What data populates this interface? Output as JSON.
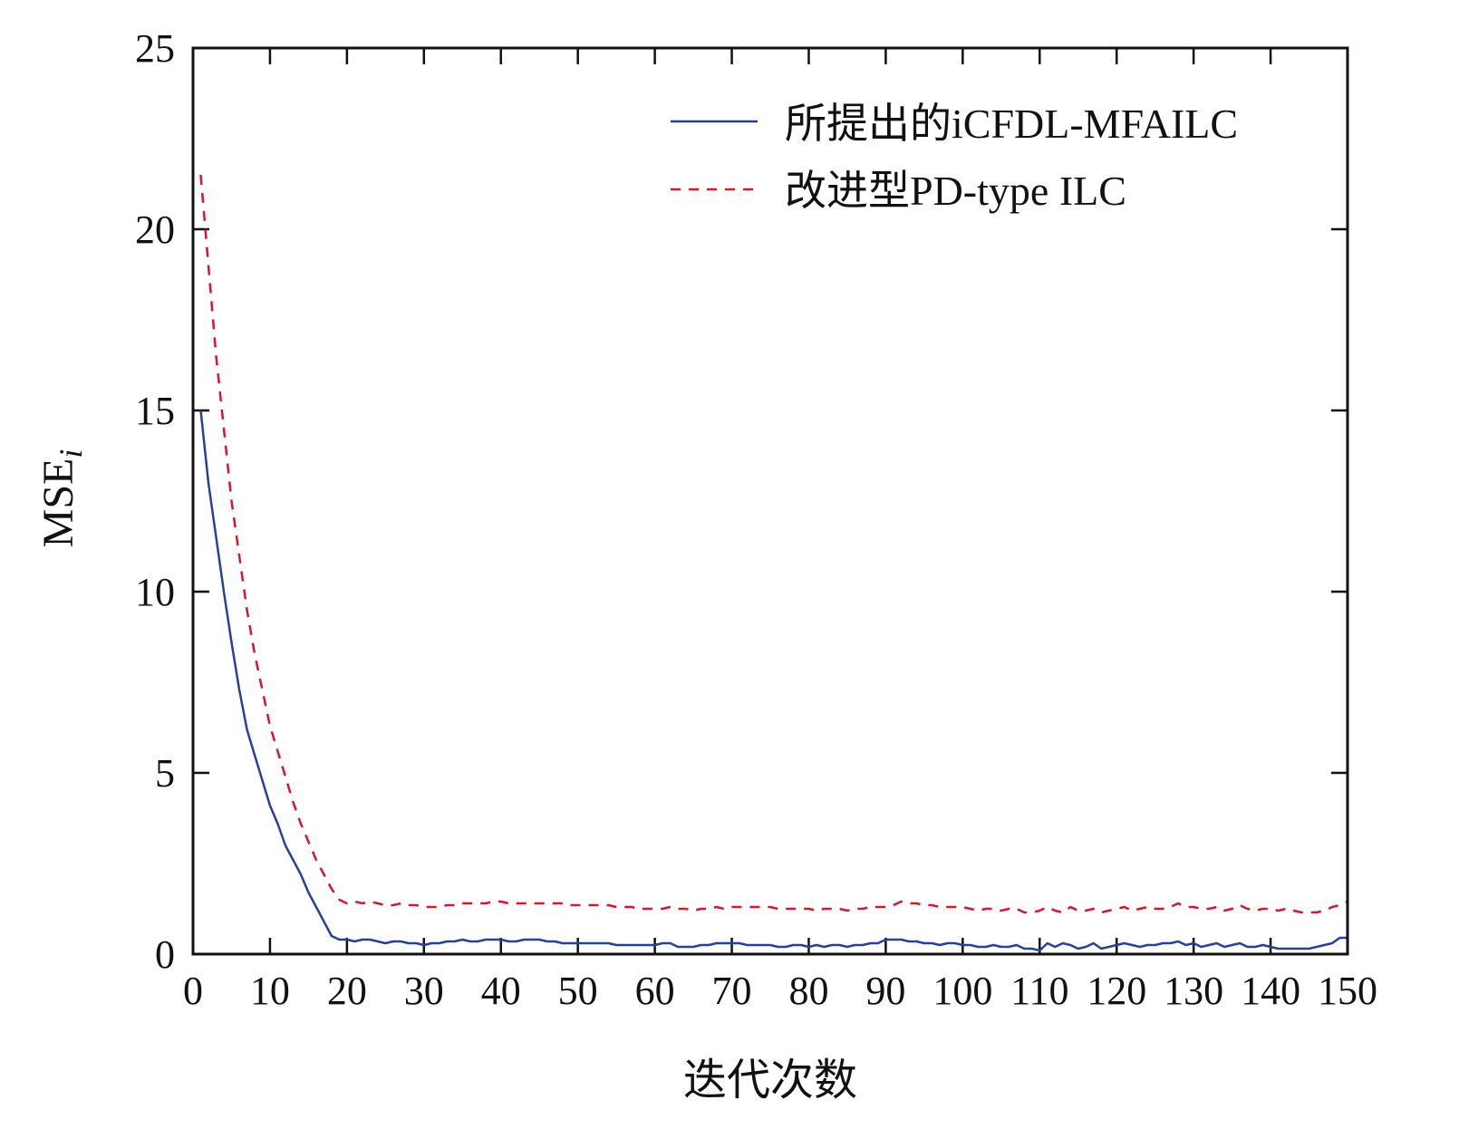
{
  "chart_data": {
    "type": "line",
    "title": "",
    "xlabel": "迭代次数",
    "ylabel": "MSE",
    "ylabel_subscript": "i",
    "xlim": [
      0,
      150
    ],
    "ylim": [
      0,
      25
    ],
    "xticks": [
      0,
      10,
      20,
      30,
      40,
      50,
      60,
      70,
      80,
      90,
      100,
      110,
      120,
      130,
      140,
      150
    ],
    "yticks": [
      0,
      5,
      10,
      15,
      20,
      25
    ],
    "grid": false,
    "legend_position": "top-right",
    "x_start": 1,
    "series": [
      {
        "name": "所提出的iCFDL-MFAILC",
        "color": "#2a3f9a",
        "style": "solid",
        "values": [
          15,
          13,
          11.5,
          10,
          8.6,
          7.3,
          6.2,
          5.5,
          4.8,
          4.1,
          3.6,
          3.0,
          2.6,
          2.2,
          1.7,
          1.3,
          0.9,
          0.5,
          0.4,
          0.4,
          0.35,
          0.4,
          0.4,
          0.35,
          0.3,
          0.35,
          0.35,
          0.3,
          0.3,
          0.25,
          0.3,
          0.3,
          0.35,
          0.35,
          0.4,
          0.35,
          0.35,
          0.4,
          0.4,
          0.4,
          0.35,
          0.35,
          0.4,
          0.4,
          0.4,
          0.35,
          0.35,
          0.3,
          0.3,
          0.3,
          0.3,
          0.3,
          0.3,
          0.3,
          0.25,
          0.25,
          0.25,
          0.25,
          0.25,
          0.25,
          0.3,
          0.3,
          0.2,
          0.2,
          0.2,
          0.25,
          0.25,
          0.3,
          0.3,
          0.3,
          0.3,
          0.25,
          0.25,
          0.25,
          0.25,
          0.2,
          0.2,
          0.25,
          0.25,
          0.2,
          0.25,
          0.2,
          0.25,
          0.25,
          0.2,
          0.25,
          0.25,
          0.3,
          0.3,
          0.4,
          0.4,
          0.4,
          0.35,
          0.35,
          0.3,
          0.3,
          0.25,
          0.3,
          0.3,
          0.25,
          0.25,
          0.2,
          0.2,
          0.25,
          0.2,
          0.2,
          0.25,
          0.15,
          0.15,
          0.1,
          0.3,
          0.2,
          0.3,
          0.25,
          0.15,
          0.2,
          0.3,
          0.15,
          0.2,
          0.25,
          0.3,
          0.25,
          0.2,
          0.25,
          0.25,
          0.3,
          0.3,
          0.35,
          0.25,
          0.3,
          0.2,
          0.25,
          0.3,
          0.2,
          0.25,
          0.3,
          0.2,
          0.2,
          0.25,
          0.2,
          0.15,
          0.15,
          0.15,
          0.15,
          0.15,
          0.2,
          0.25,
          0.3,
          0.45,
          0.45
        ]
      },
      {
        "name": "改进型PD-type ILC",
        "color": "#d9142b",
        "style": "dashed",
        "values": [
          21.5,
          19,
          16.5,
          14.5,
          12.5,
          11,
          9.5,
          8.3,
          7.3,
          6.3,
          5.6,
          4.9,
          4.2,
          3.6,
          3.1,
          2.6,
          2.2,
          1.8,
          1.5,
          1.4,
          1.45,
          1.4,
          1.45,
          1.4,
          1.35,
          1.35,
          1.4,
          1.35,
          1.35,
          1.3,
          1.3,
          1.3,
          1.35,
          1.35,
          1.4,
          1.4,
          1.4,
          1.4,
          1.45,
          1.45,
          1.4,
          1.4,
          1.4,
          1.4,
          1.4,
          1.4,
          1.4,
          1.4,
          1.35,
          1.35,
          1.35,
          1.35,
          1.35,
          1.35,
          1.3,
          1.3,
          1.3,
          1.25,
          1.25,
          1.25,
          1.25,
          1.3,
          1.25,
          1.25,
          1.2,
          1.25,
          1.25,
          1.3,
          1.25,
          1.3,
          1.3,
          1.3,
          1.3,
          1.3,
          1.3,
          1.25,
          1.25,
          1.25,
          1.25,
          1.25,
          1.2,
          1.25,
          1.25,
          1.25,
          1.2,
          1.25,
          1.25,
          1.3,
          1.3,
          1.3,
          1.35,
          1.45,
          1.4,
          1.4,
          1.35,
          1.35,
          1.3,
          1.3,
          1.3,
          1.3,
          1.25,
          1.2,
          1.25,
          1.25,
          1.2,
          1.25,
          1.25,
          1.15,
          1.15,
          1.2,
          1.3,
          1.2,
          1.15,
          1.3,
          1.2,
          1.2,
          1.25,
          1.15,
          1.2,
          1.25,
          1.3,
          1.2,
          1.25,
          1.3,
          1.25,
          1.25,
          1.3,
          1.4,
          1.3,
          1.3,
          1.25,
          1.25,
          1.3,
          1.2,
          1.25,
          1.35,
          1.25,
          1.2,
          1.25,
          1.25,
          1.2,
          1.25,
          1.2,
          1.15,
          1.15,
          1.15,
          1.2,
          1.3,
          1.35,
          1.45
        ]
      }
    ]
  }
}
